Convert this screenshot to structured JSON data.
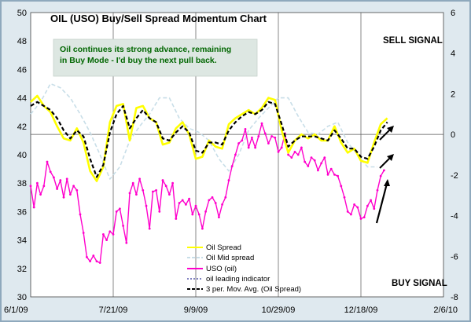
{
  "chart_data": {
    "type": "line",
    "title": "OIL (USO) Buy/Sell Spread Momentum Chart",
    "annotation": "Oil continues its strong advance, remaining in Buy Mode - I'd buy the next pull back.",
    "annotation_lines": [
      "Oil continues its strong advance, remaining",
      "in Buy Mode - I'd buy the next pull back."
    ],
    "sell_signal_label": "SELL SIGNAL",
    "buy_signal_label": "BUY SIGNAL",
    "x_ticks": [
      "6/1/09",
      "7/21/09",
      "9/9/09",
      "10/29/09",
      "12/18/09",
      "2/6/10"
    ],
    "x_tick_days": [
      0,
      50,
      100,
      150,
      200,
      250
    ],
    "xlim_days": [
      0,
      250
    ],
    "y_left_ticks": [
      30,
      32,
      34,
      36,
      38,
      40,
      42,
      44,
      46,
      48,
      50
    ],
    "ylim_left": [
      30,
      50
    ],
    "y_right_ticks": [
      -8,
      -6,
      -4,
      -2,
      0,
      2,
      4,
      6
    ],
    "ylim_right": [
      -8,
      6
    ],
    "legend": [
      "Oil Spread",
      "Oil Mid spread",
      "USO (oil)",
      "oil leading indicator",
      "3 per. Mov. Avg. (Oil Spread)"
    ],
    "legend_placement": "bottom-center",
    "colors": {
      "oil_spread": "#ffff00",
      "oil_mid_spread": "#c8dee8",
      "uso": "#ff00cc",
      "leading_indicator": "#000080",
      "moving_avg": "#000000",
      "plot_background": "#ffffff",
      "frame": "#dfe9ef",
      "annotation_box": "#dde7e2"
    },
    "series": [
      {
        "name": "USO (oil)",
        "axis": "left",
        "x": [
          0,
          2,
          4,
          6,
          8,
          10,
          12,
          14,
          16,
          18,
          20,
          22,
          24,
          26,
          28,
          30,
          32,
          34,
          36,
          38,
          40,
          42,
          44,
          46,
          48,
          50,
          52,
          54,
          56,
          58,
          60,
          62,
          64,
          66,
          68,
          70,
          72,
          74,
          76,
          78,
          80,
          82,
          84,
          86,
          88,
          90,
          92,
          94,
          96,
          98,
          100,
          102,
          104,
          106,
          108,
          110,
          112,
          114,
          116,
          118,
          120,
          122,
          124,
          126,
          128,
          130,
          132,
          134,
          136,
          138,
          140,
          142,
          144,
          146,
          148,
          150,
          152,
          154,
          156,
          158,
          160,
          162,
          164,
          166,
          168,
          170,
          172,
          174,
          176,
          178,
          180,
          182,
          184,
          186,
          188,
          190,
          192,
          194,
          196,
          198,
          200,
          202,
          204,
          206,
          208,
          210,
          212,
          214
        ],
        "values": [
          37.8,
          36.3,
          38.0,
          37.2,
          37.8,
          39.5,
          38.8,
          38.4,
          37.6,
          38.2,
          37.0,
          38.3,
          37.2,
          37.8,
          37.5,
          35.8,
          34.5,
          32.8,
          32.5,
          32.9,
          32.5,
          32.4,
          34.4,
          34.0,
          34.6,
          34.4,
          36.0,
          36.2,
          35.0,
          33.8,
          37.3,
          38.0,
          37.2,
          38.3,
          37.5,
          36.4,
          34.8,
          37.4,
          37.5,
          36.0,
          38.2,
          37.8,
          37.2,
          38.0,
          35.5,
          36.6,
          36.8,
          36.5,
          36.9,
          35.8,
          36.4,
          35.8,
          34.8,
          36.0,
          36.8,
          37.0,
          36.6,
          35.6,
          36.5,
          37.0,
          38.2,
          39.2,
          40.0,
          40.8,
          41.0,
          41.8,
          40.5,
          41.2,
          40.5,
          41.3,
          42.2,
          41.5,
          40.8,
          41.3,
          41.2,
          40.2,
          40.5,
          41.5,
          40.0,
          39.8,
          40.2,
          40.0,
          40.5,
          39.5,
          39.2,
          39.8,
          39.6,
          38.9,
          39.4,
          39.8,
          38.6,
          39.0,
          38.6,
          38.5,
          37.8,
          37.0,
          36.0,
          35.8,
          36.5,
          36.3,
          35.5,
          35.6,
          36.4,
          36.8,
          36.2,
          37.5,
          38.5,
          38.9
        ]
      },
      {
        "name": "Oil Spread",
        "axis": "right",
        "x": [
          0,
          4,
          8,
          12,
          16,
          20,
          24,
          28,
          32,
          36,
          40,
          44,
          48,
          52,
          56,
          60,
          64,
          68,
          72,
          76,
          80,
          84,
          88,
          92,
          96,
          100,
          104,
          108,
          112,
          116,
          120,
          124,
          128,
          132,
          136,
          140,
          144,
          148,
          152,
          156,
          160,
          164,
          168,
          172,
          176,
          180,
          184,
          188,
          192,
          196,
          200,
          204,
          208,
          212,
          216
        ],
        "values": [
          1.6,
          1.9,
          1.4,
          1.1,
          0.4,
          -0.2,
          -0.3,
          0.3,
          -0.4,
          -1.8,
          -2.3,
          -1.6,
          0.6,
          1.4,
          1.5,
          -0.3,
          1.3,
          1.4,
          0.8,
          0.6,
          -0.5,
          -0.4,
          0.3,
          0.6,
          0.0,
          -1.2,
          -1.1,
          -0.3,
          -0.6,
          -0.7,
          0.5,
          0.8,
          1.0,
          1.2,
          1.0,
          1.3,
          1.8,
          1.7,
          0.2,
          -0.9,
          -0.3,
          0.0,
          -0.2,
          0.0,
          -0.3,
          -0.3,
          0.4,
          -0.4,
          -0.9,
          -0.7,
          -1.3,
          -1.4,
          -0.4,
          0.5,
          0.8
        ]
      },
      {
        "name": "Oil Mid spread",
        "axis": "right",
        "x": [
          0,
          6,
          12,
          18,
          24,
          30,
          36,
          42,
          48,
          54,
          60,
          66,
          72,
          78,
          84,
          90,
          96,
          102,
          108,
          114,
          120,
          126,
          132,
          138,
          144,
          150,
          156,
          162,
          168,
          174,
          180,
          186,
          192,
          198,
          204,
          210
        ],
        "values": [
          1.0,
          1.6,
          2.5,
          2.3,
          1.8,
          1.0,
          0.1,
          -1.0,
          -2.2,
          -1.6,
          -0.3,
          0.4,
          1.0,
          1.8,
          1.8,
          0.8,
          0.3,
          0.1,
          -0.3,
          -1.2,
          -1.8,
          -1.0,
          0.2,
          0.8,
          1.3,
          1.8,
          1.8,
          0.9,
          0.1,
          0.0,
          0.4,
          0.6,
          -0.4,
          -1.0,
          -1.6,
          -1.6
        ]
      },
      {
        "name": "3 per. Mov. Avg. (Oil Spread)",
        "axis": "right",
        "x": [
          0,
          4,
          8,
          12,
          16,
          20,
          24,
          28,
          32,
          36,
          40,
          44,
          48,
          52,
          56,
          60,
          64,
          68,
          72,
          76,
          80,
          84,
          88,
          92,
          96,
          100,
          104,
          108,
          112,
          116,
          120,
          124,
          128,
          132,
          136,
          140,
          144,
          148,
          152,
          156,
          160,
          164,
          168,
          172,
          176,
          180,
          184,
          188,
          192,
          196,
          200,
          204,
          208,
          212,
          216
        ],
        "values": [
          1.4,
          1.6,
          1.4,
          1.2,
          0.8,
          0.2,
          -0.2,
          0.2,
          -0.1,
          -1.2,
          -2.1,
          -1.5,
          0.1,
          1.0,
          1.4,
          0.3,
          0.8,
          1.2,
          0.8,
          0.6,
          -0.2,
          -0.3,
          0.1,
          0.4,
          0.1,
          -0.8,
          -0.9,
          -0.4,
          -0.4,
          -0.5,
          0.2,
          0.6,
          0.9,
          1.1,
          1.0,
          1.2,
          1.6,
          1.5,
          0.5,
          -0.6,
          -0.3,
          -0.1,
          -0.1,
          -0.1,
          -0.2,
          -0.3,
          0.2,
          -0.2,
          -0.7,
          -0.7,
          -1.1,
          -1.2,
          -0.6,
          0.2,
          0.6
        ]
      }
    ]
  }
}
